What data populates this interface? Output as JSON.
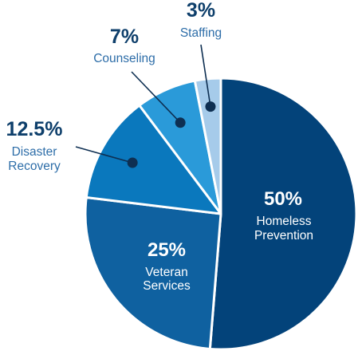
{
  "chart_data": {
    "type": "pie",
    "title": "",
    "slices": [
      {
        "label": "Homeless Prevention",
        "label_lines": [
          "Homeless",
          "Prevention"
        ],
        "value": 50,
        "value_label": "50%",
        "color": "#03437a",
        "text_color": "#ffffff"
      },
      {
        "label": "Veteran Services",
        "label_lines": [
          "Veteran",
          "Services"
        ],
        "value": 25,
        "value_label": "25%",
        "color": "#0f61a0",
        "text_color": "#ffffff"
      },
      {
        "label": "Disaster Recovery",
        "label_lines": [
          "Disaster",
          "Recovery"
        ],
        "value": 12.5,
        "value_label": "12.5%",
        "color": "#0a78bd",
        "text_color": "#0e3f6b"
      },
      {
        "label": "Counseling",
        "label_lines": [
          "Counseling"
        ],
        "value": 7,
        "value_label": "7%",
        "color": "#2a9ad9",
        "text_color": "#0e3f6b"
      },
      {
        "label": "Staffing",
        "label_lines": [
          "Staffing"
        ],
        "value": 3,
        "value_label": "3%",
        "color": "#a6cbea",
        "text_color": "#0e3f6b"
      }
    ],
    "colors": {
      "outside_label_value": "#0e3f6b",
      "outside_label_name": "#2d6da8",
      "leader": "#0e2f52",
      "separator": "#ffffff"
    }
  }
}
